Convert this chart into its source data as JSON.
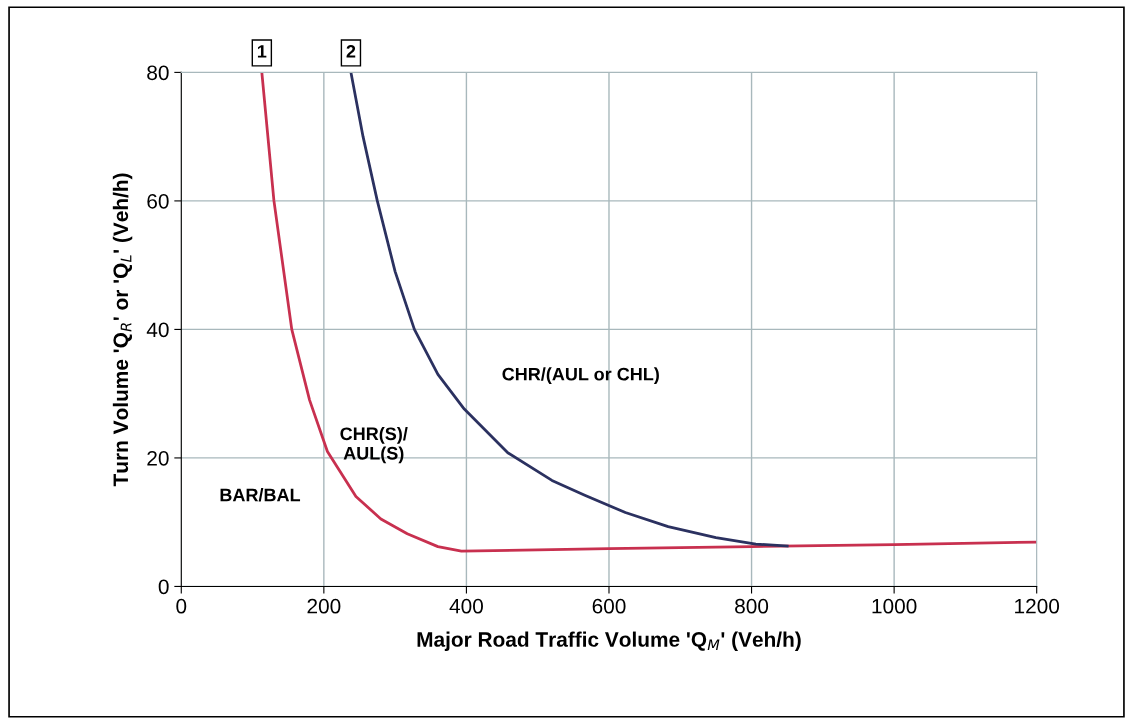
{
  "chart_data": {
    "type": "line",
    "xlabel": "Major Road Traffic Volume 'Q$_{M}$' (Veh/h)",
    "ylabel": "Turn Volume 'Q$_{R}$' or 'Q$_{L}$' (Veh/h)",
    "xlim": [
      0,
      1200
    ],
    "ylim": [
      0,
      80
    ],
    "xticks": [
      0,
      200,
      400,
      600,
      800,
      1000,
      1200
    ],
    "yticks": [
      0,
      20,
      40,
      60,
      80
    ],
    "grid": true,
    "marker": "none",
    "line_style": "solid",
    "series": [
      {
        "color": "#c8304f",
        "x": [
          113,
          130,
          155,
          180,
          205,
          245,
          280,
          317,
          360,
          393,
          500,
          600,
          800,
          1000,
          1200
        ],
        "values": [
          80,
          60,
          40,
          29,
          21,
          14,
          10.5,
          8.2,
          6.2,
          5.5,
          5.7,
          5.9,
          6.2,
          6.5,
          6.9
        ]
      },
      {
        "color": "#2b3160",
        "x": [
          238,
          255,
          275,
          300,
          327,
          360,
          397,
          458,
          520,
          566,
          623,
          683,
          750,
          806,
          850
        ],
        "values": [
          80,
          70,
          60,
          49,
          40,
          33,
          27.6,
          20.8,
          16.5,
          14.2,
          11.5,
          9.3,
          7.6,
          6.6,
          6.3
        ]
      }
    ],
    "annotations": [
      {
        "text": "1",
        "x": 113,
        "y": 80
      },
      {
        "text": "2",
        "x": 238,
        "y": 80
      },
      "BAR/BAL",
      "CHR(S)/\nAUL(S)",
      "CHR/(AUL or CHL)"
    ]
  }
}
